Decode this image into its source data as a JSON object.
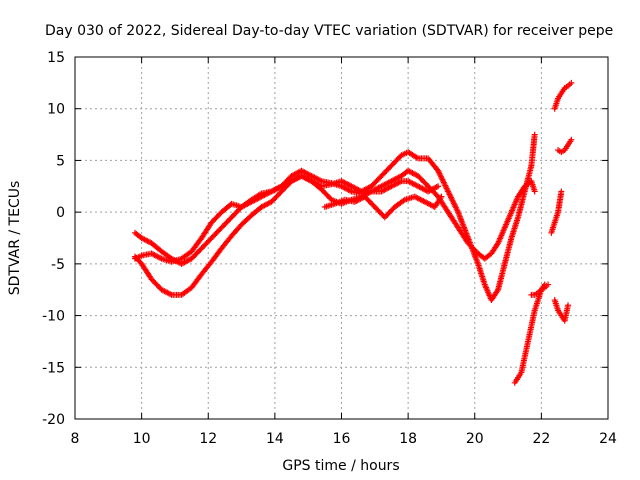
{
  "chart_data": {
    "type": "scatter",
    "title": "Day 030 of 2022, Sidereal Day-to-day VTEC variation (SDTVAR) for receiver pepe",
    "xlabel": "GPS time / hours",
    "ylabel": "SDTVAR / TECUs",
    "xlim": [
      8,
      24
    ],
    "ylim": [
      -20,
      15
    ],
    "xticks": [
      "8",
      "10",
      "12",
      "14",
      "16",
      "18",
      "20",
      "22",
      "24"
    ],
    "yticks": [
      "-20",
      "-15",
      "-10",
      "-5",
      "0",
      "5",
      "10",
      "15"
    ],
    "grid": true,
    "marker": "+",
    "color": "#ff0000",
    "series": [
      {
        "x": [
          9.8,
          10.0,
          10.3,
          10.6,
          10.9,
          11.2,
          11.5,
          11.8,
          12.1,
          12.4,
          12.7,
          13.0,
          13.3,
          13.6,
          13.9,
          14.2,
          14.5,
          14.8,
          15.1,
          15.4,
          15.7,
          16.0,
          16.3,
          16.6,
          16.9,
          17.2,
          17.5,
          17.8,
          18.0,
          18.3,
          18.6,
          18.9,
          19.2,
          19.5,
          19.8,
          20.1,
          20.3,
          20.5,
          20.7,
          20.9,
          21.1,
          21.3,
          21.5,
          21.7,
          21.8
        ],
        "y": [
          -4.3,
          -5.0,
          -6.5,
          -7.5,
          -8.0,
          -8.0,
          -7.3,
          -6.0,
          -4.8,
          -3.5,
          -2.3,
          -1.2,
          -0.3,
          0.5,
          1.0,
          2.0,
          3.0,
          3.5,
          3.0,
          2.5,
          2.7,
          3.0,
          2.5,
          2.0,
          2.5,
          3.5,
          4.5,
          5.5,
          5.8,
          5.2,
          5.2,
          4.0,
          2.0,
          0.0,
          -2.5,
          -5.0,
          -7.0,
          -8.5,
          -7.5,
          -5.0,
          -2.5,
          -0.5,
          2.0,
          4.5,
          7.5
        ]
      },
      {
        "x": [
          9.8,
          10.0,
          10.3,
          10.6,
          10.9,
          11.2,
          11.5,
          11.8,
          12.1,
          12.4,
          12.7,
          13.0,
          13.3,
          13.6,
          13.9,
          14.2,
          14.5,
          14.8,
          15.1,
          15.4,
          15.7,
          16.0,
          16.3,
          16.6,
          16.9,
          17.2,
          17.5,
          17.8,
          18.0,
          18.3,
          18.6,
          18.9,
          19.2,
          19.5,
          19.8,
          20.1,
          20.3,
          20.5,
          20.7,
          20.9,
          21.1,
          21.3,
          21.5,
          21.7,
          21.8
        ],
        "y": [
          -2.0,
          -2.5,
          -3.0,
          -3.8,
          -4.5,
          -5.0,
          -4.5,
          -3.5,
          -2.5,
          -1.5,
          -0.5,
          0.5,
          1.2,
          1.8,
          2.0,
          2.5,
          3.5,
          4.0,
          3.5,
          3.0,
          2.8,
          2.5,
          2.0,
          1.8,
          2.0,
          2.5,
          3.0,
          3.5,
          4.0,
          3.5,
          2.5,
          1.5,
          0.0,
          -1.5,
          -3.0,
          -4.0,
          -4.5,
          -4.0,
          -3.0,
          -1.5,
          0.0,
          1.5,
          2.5,
          3.0,
          2.0
        ]
      },
      {
        "x": [
          9.8,
          10.0,
          10.3,
          10.6,
          10.9,
          11.2,
          11.5,
          11.8,
          12.1,
          12.4,
          12.7,
          13.0,
          13.3,
          13.6,
          13.9,
          14.2,
          14.5,
          14.8,
          15.1,
          15.4,
          15.7,
          16.0,
          16.3,
          16.6,
          16.9,
          17.2,
          17.5,
          17.8,
          18.0,
          18.3,
          18.6,
          18.9
        ],
        "y": [
          -4.5,
          -4.2,
          -4.0,
          -4.5,
          -4.8,
          -4.5,
          -3.8,
          -2.5,
          -1.0,
          0.0,
          0.8,
          0.5,
          1.0,
          1.5,
          2.0,
          2.5,
          3.0,
          3.5,
          3.0,
          2.2,
          1.2,
          0.8,
          1.2,
          1.5,
          2.0,
          2.0,
          2.5,
          3.0,
          3.0,
          2.5,
          2.0,
          2.5
        ]
      },
      {
        "x": [
          15.5,
          15.8,
          16.1,
          16.4,
          16.7,
          17.0,
          17.3,
          17.6,
          17.9,
          18.2,
          18.5,
          18.8,
          19.0
        ],
        "y": [
          0.5,
          0.8,
          1.2,
          1.0,
          1.5,
          0.5,
          -0.5,
          0.5,
          1.2,
          1.5,
          1.0,
          0.5,
          1.5
        ]
      },
      {
        "x": [
          21.2,
          21.3,
          21.4,
          21.5,
          21.6,
          21.7,
          21.8,
          21.9,
          22.0,
          22.1
        ],
        "y": [
          -16.5,
          -16.0,
          -15.5,
          -14.0,
          -12.5,
          -11.0,
          -9.5,
          -8.5,
          -7.5,
          -7.0
        ]
      },
      {
        "x": [
          21.7,
          21.8,
          21.9,
          22.0,
          22.1,
          22.2
        ],
        "y": [
          -8.0,
          -8.0,
          -7.8,
          -7.5,
          -7.3,
          -7.0
        ]
      },
      {
        "x": [
          22.4,
          22.5,
          22.6,
          22.7,
          22.8
        ],
        "y": [
          -8.5,
          -9.5,
          -10.0,
          -10.5,
          -9.0
        ]
      },
      {
        "x": [
          22.4,
          22.5,
          22.6,
          22.7,
          22.8,
          22.9
        ],
        "y": [
          10.0,
          11.0,
          11.5,
          12.0,
          12.2,
          12.5
        ]
      },
      {
        "x": [
          22.5,
          22.6,
          22.7,
          22.8,
          22.9
        ],
        "y": [
          6.0,
          5.8,
          6.0,
          6.5,
          7.0
        ]
      },
      {
        "x": [
          22.3,
          22.4,
          22.5,
          22.6
        ],
        "y": [
          -2.0,
          -1.0,
          0.0,
          2.0
        ]
      }
    ]
  }
}
